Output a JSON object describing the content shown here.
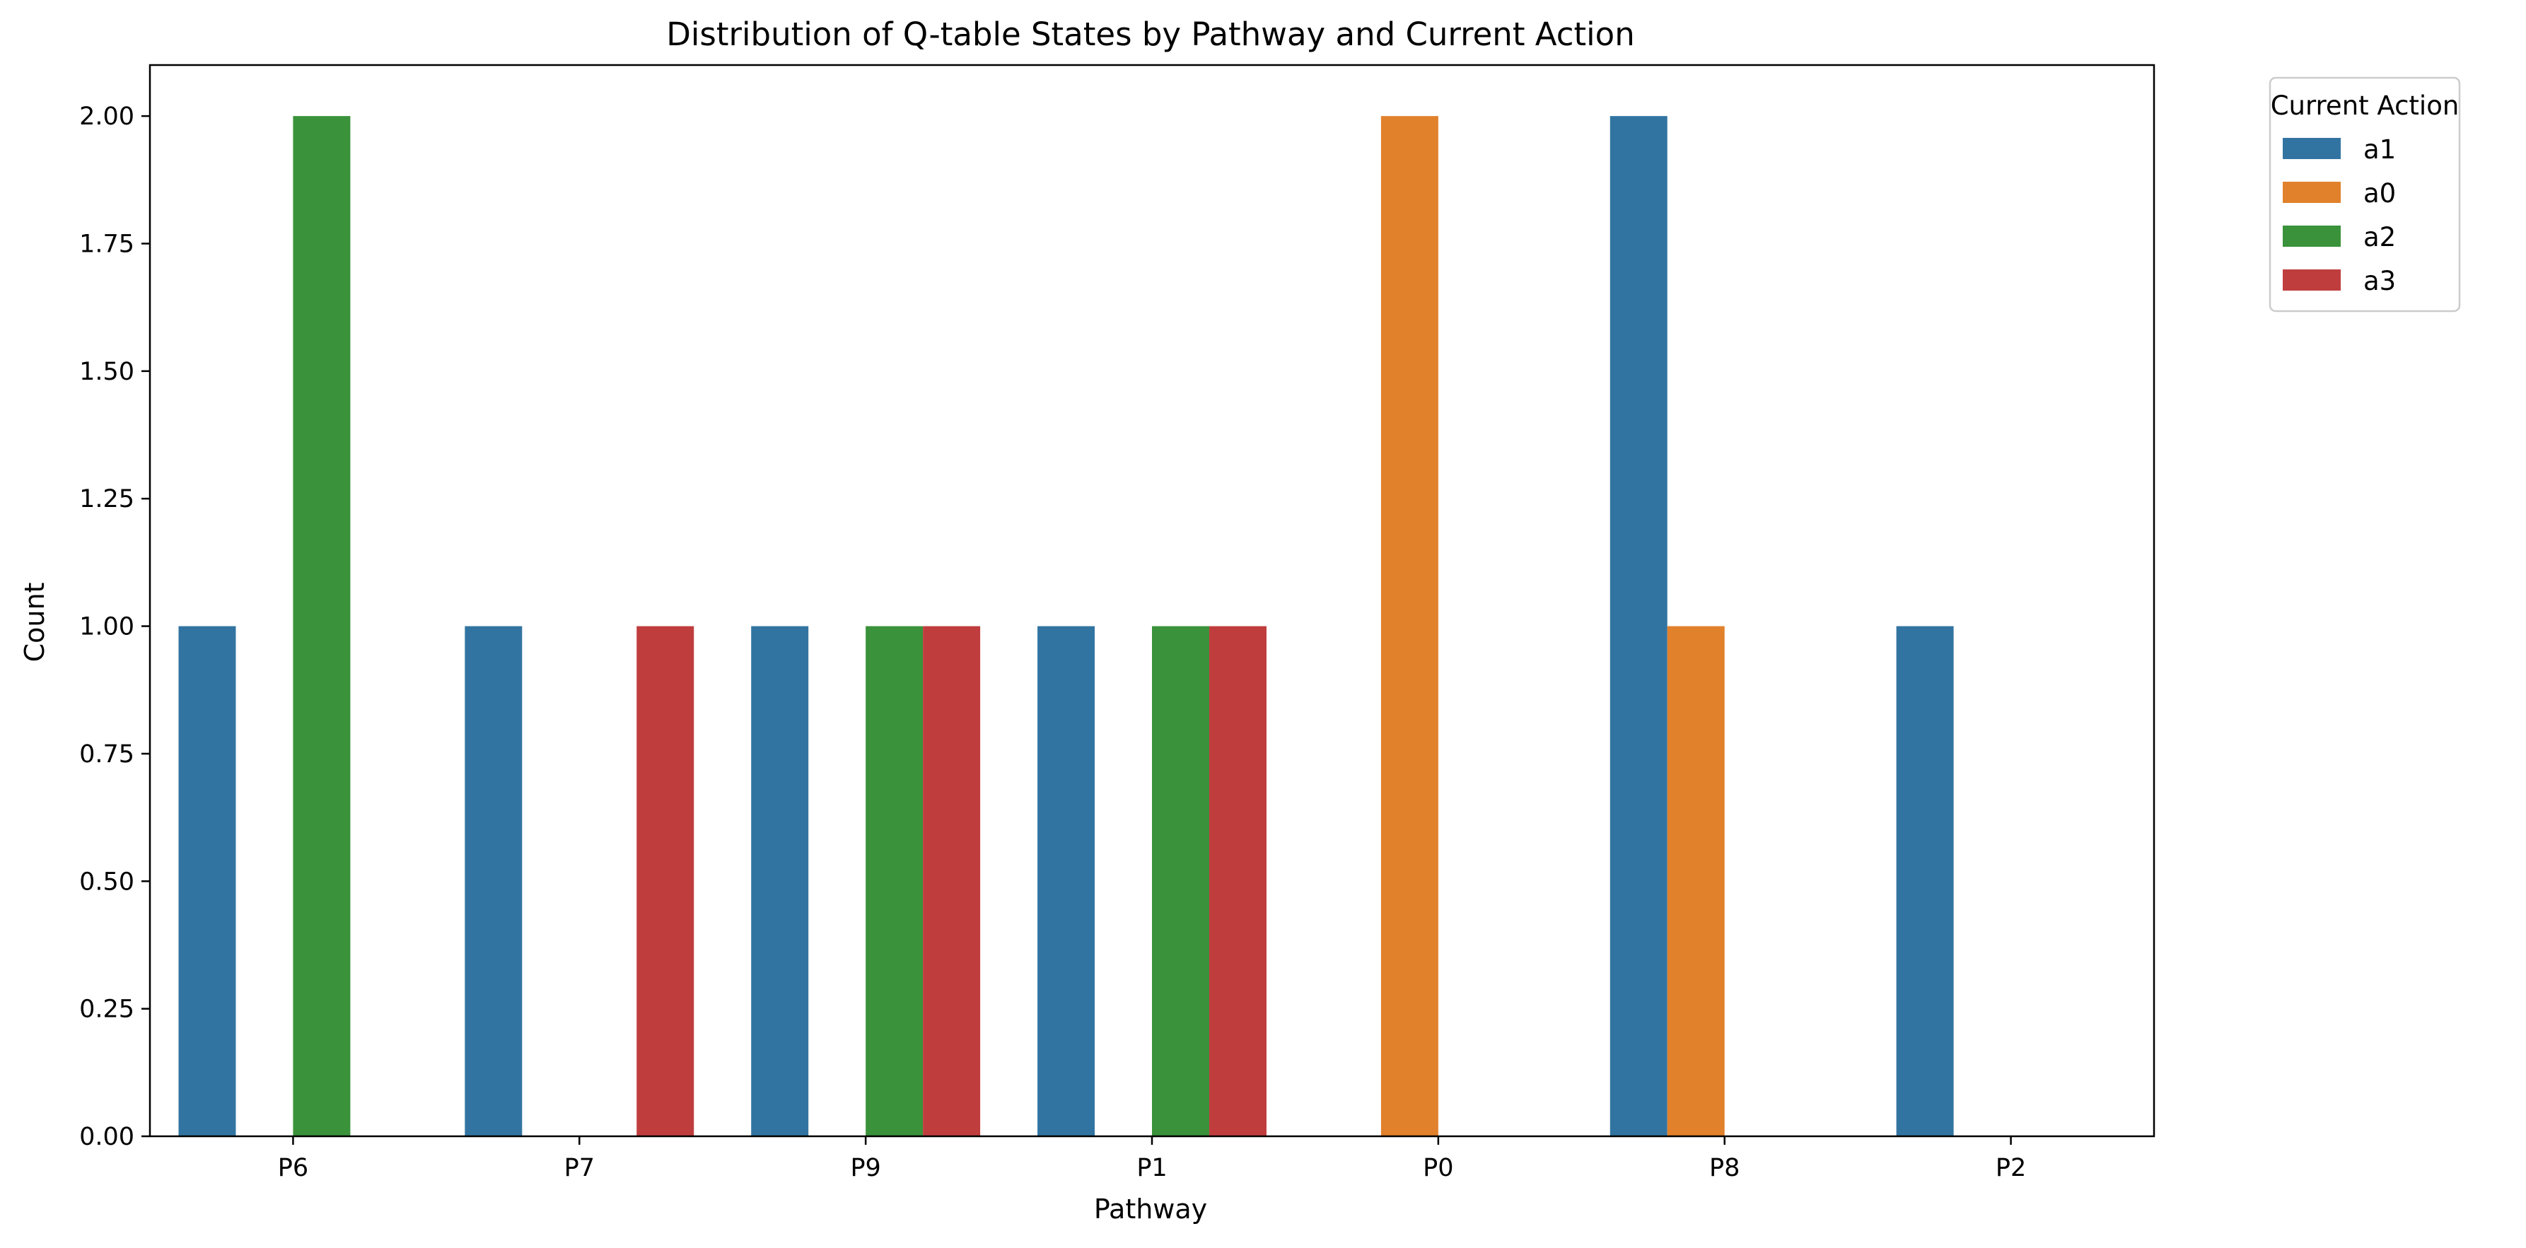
{
  "chart_data": {
    "type": "bar",
    "title": "Distribution of Q-table States by Pathway and Current Action",
    "xlabel": "Pathway",
    "ylabel": "Count",
    "ylim": [
      0,
      2.1
    ],
    "yticks": [
      "0.00",
      "0.25",
      "0.50",
      "0.75",
      "1.00",
      "1.25",
      "1.50",
      "1.75",
      "2.00"
    ],
    "categories": [
      "P6",
      "P7",
      "P9",
      "P1",
      "P0",
      "P8",
      "P2"
    ],
    "legend": {
      "title": "Current Action",
      "placement": "outside-top-right"
    },
    "grid": false,
    "series": [
      {
        "name": "a1",
        "color": "#3274a1",
        "values": [
          1,
          1,
          1,
          1,
          0,
          2,
          1
        ]
      },
      {
        "name": "a0",
        "color": "#e1812c",
        "values": [
          0,
          0,
          0,
          0,
          2,
          1,
          0
        ]
      },
      {
        "name": "a2",
        "color": "#3a923a",
        "values": [
          2,
          0,
          1,
          1,
          0,
          0,
          0
        ]
      },
      {
        "name": "a3",
        "color": "#c03d3e",
        "values": [
          0,
          1,
          1,
          1,
          0,
          0,
          0
        ]
      }
    ]
  }
}
